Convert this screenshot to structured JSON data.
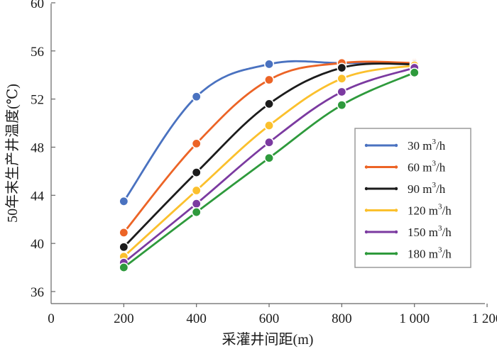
{
  "chart_data": {
    "type": "line",
    "title": "",
    "xlabel": "采灌井间距(m)",
    "ylabel": "50年末生产井温度(℃)",
    "xlim": [
      0,
      1200
    ],
    "ylim": [
      36,
      60
    ],
    "x_ticks": [
      {
        "value": 0,
        "label": "0"
      },
      {
        "value": 200,
        "label": "200"
      },
      {
        "value": 400,
        "label": "400"
      },
      {
        "value": 600,
        "label": "600"
      },
      {
        "value": 800,
        "label": "800"
      },
      {
        "value": 1000,
        "label": "1 000"
      },
      {
        "value": 1200,
        "label": "1 200"
      }
    ],
    "y_ticks": [
      {
        "value": 36,
        "label": "36"
      },
      {
        "value": 40,
        "label": "40"
      },
      {
        "value": 44,
        "label": "44"
      },
      {
        "value": 48,
        "label": "48"
      },
      {
        "value": 52,
        "label": "52"
      },
      {
        "value": 56,
        "label": "56"
      },
      {
        "value": 60,
        "label": "60"
      }
    ],
    "grid": false,
    "legend_position": "right",
    "x": [
      200,
      400,
      600,
      800,
      1000
    ],
    "series": [
      {
        "name": "30 m³/h",
        "legend_value": "30 m",
        "legend_unit": "/h",
        "legend_sup": "3",
        "color": "#4a72c0",
        "values": [
          43.5,
          52.2,
          54.9,
          55.0,
          55.0
        ]
      },
      {
        "name": "60 m³/h",
        "legend_value": "60 m",
        "legend_unit": "/h",
        "legend_sup": "3",
        "color": "#ec6426",
        "values": [
          40.9,
          48.3,
          53.6,
          55.0,
          55.0
        ]
      },
      {
        "name": "90 m³/h",
        "legend_value": "90 m",
        "legend_unit": "/h",
        "legend_sup": "3",
        "color": "#1c1c1c",
        "values": [
          39.7,
          45.9,
          51.6,
          54.6,
          54.9
        ]
      },
      {
        "name": "120 m³/h",
        "legend_value": "120 m",
        "legend_unit": "/h",
        "legend_sup": "3",
        "color": "#fbc02d",
        "values": [
          38.9,
          44.4,
          49.8,
          53.7,
          54.8
        ]
      },
      {
        "name": "150 m³/h",
        "legend_value": "150 m",
        "legend_unit": "/h",
        "legend_sup": "3",
        "color": "#7b3aa0",
        "values": [
          38.4,
          43.3,
          48.4,
          52.6,
          54.6
        ]
      },
      {
        "name": "180 m³/h",
        "legend_value": "180 m",
        "legend_unit": "/h",
        "legend_sup": "3",
        "color": "#2e9a3c",
        "values": [
          38.0,
          42.6,
          47.1,
          51.5,
          54.2
        ]
      }
    ]
  }
}
